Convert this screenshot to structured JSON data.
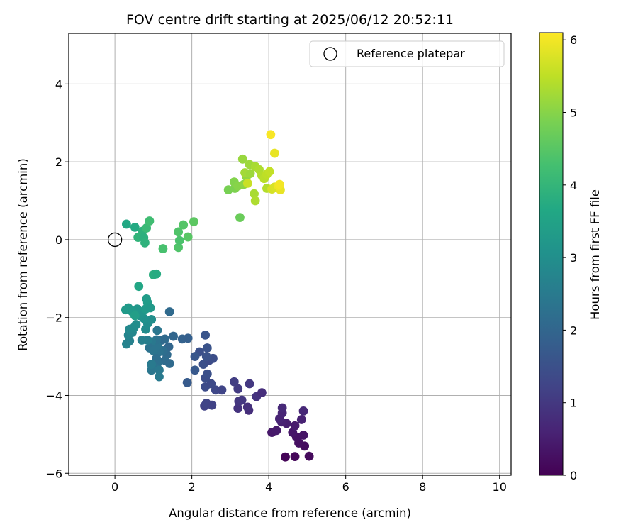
{
  "chart_data": {
    "type": "scatter",
    "title": "FOV centre drift starting at 2025/06/12 20:52:11",
    "xlabel": "Angular distance from reference (arcmin)",
    "ylabel": "Rotation from reference (arcmin)",
    "xlim": [
      -1.2,
      10.3
    ],
    "ylim": [
      -6.05,
      5.3
    ],
    "xticks": [
      0,
      2,
      4,
      6,
      8,
      10
    ],
    "yticks": [
      -6,
      -4,
      -2,
      0,
      2,
      4
    ],
    "grid": true,
    "legend": {
      "position": "top-right",
      "entries": [
        "Reference platepar"
      ]
    },
    "reference_point": {
      "x": 0,
      "y": 0,
      "marker": "open-circle"
    },
    "colorbar": {
      "label": "Hours from first FF file",
      "colormap": "viridis",
      "range": [
        0,
        6.1
      ],
      "ticks": [
        0,
        1,
        2,
        3,
        4,
        5,
        6
      ]
    },
    "points": [
      {
        "x": 4.43,
        "y": -5.58,
        "c": 0.05
      },
      {
        "x": 4.68,
        "y": -5.57,
        "c": 0.1
      },
      {
        "x": 5.05,
        "y": -5.56,
        "c": 0.15
      },
      {
        "x": 4.93,
        "y": -5.3,
        "c": 0.2
      },
      {
        "x": 4.78,
        "y": -5.22,
        "c": 0.25
      },
      {
        "x": 4.72,
        "y": -5.07,
        "c": 0.3
      },
      {
        "x": 4.9,
        "y": -5.02,
        "c": 0.33
      },
      {
        "x": 4.62,
        "y": -4.95,
        "c": 0.37
      },
      {
        "x": 4.08,
        "y": -4.95,
        "c": 0.4
      },
      {
        "x": 4.2,
        "y": -4.9,
        "c": 0.43
      },
      {
        "x": 4.68,
        "y": -4.78,
        "c": 0.46
      },
      {
        "x": 4.46,
        "y": -4.72,
        "c": 0.5
      },
      {
        "x": 4.33,
        "y": -4.68,
        "c": 0.55
      },
      {
        "x": 4.85,
        "y": -4.62,
        "c": 0.58
      },
      {
        "x": 4.28,
        "y": -4.6,
        "c": 0.61
      },
      {
        "x": 4.35,
        "y": -4.45,
        "c": 0.65
      },
      {
        "x": 4.9,
        "y": -4.4,
        "c": 0.68
      },
      {
        "x": 4.35,
        "y": -4.32,
        "c": 0.7
      },
      {
        "x": 3.48,
        "y": -4.38,
        "c": 0.8
      },
      {
        "x": 3.45,
        "y": -4.3,
        "c": 0.85
      },
      {
        "x": 3.2,
        "y": -4.33,
        "c": 0.9
      },
      {
        "x": 3.22,
        "y": -4.15,
        "c": 0.95
      },
      {
        "x": 3.3,
        "y": -4.12,
        "c": 1.0
      },
      {
        "x": 3.68,
        "y": -4.03,
        "c": 0.9
      },
      {
        "x": 3.82,
        "y": -3.93,
        "c": 0.8
      },
      {
        "x": 3.2,
        "y": -3.83,
        "c": 1.05
      },
      {
        "x": 3.5,
        "y": -3.7,
        "c": 1.0
      },
      {
        "x": 3.1,
        "y": -3.65,
        "c": 1.1
      },
      {
        "x": 2.33,
        "y": -4.27,
        "c": 1.2
      },
      {
        "x": 2.38,
        "y": -4.2,
        "c": 1.25
      },
      {
        "x": 2.52,
        "y": -4.25,
        "c": 1.2
      },
      {
        "x": 2.62,
        "y": -3.86,
        "c": 1.3
      },
      {
        "x": 2.78,
        "y": -3.86,
        "c": 1.25
      },
      {
        "x": 2.35,
        "y": -3.78,
        "c": 1.4
      },
      {
        "x": 2.5,
        "y": -3.7,
        "c": 1.35
      },
      {
        "x": 2.35,
        "y": -3.55,
        "c": 1.45
      },
      {
        "x": 2.4,
        "y": -3.45,
        "c": 1.5
      },
      {
        "x": 2.3,
        "y": -3.2,
        "c": 1.5
      },
      {
        "x": 2.45,
        "y": -3.1,
        "c": 1.4
      },
      {
        "x": 2.55,
        "y": -3.05,
        "c": 1.45
      },
      {
        "x": 2.38,
        "y": -3.0,
        "c": 1.55
      },
      {
        "x": 2.2,
        "y": -2.88,
        "c": 1.5
      },
      {
        "x": 2.4,
        "y": -2.78,
        "c": 1.55
      },
      {
        "x": 2.35,
        "y": -2.45,
        "c": 1.6
      },
      {
        "x": 2.08,
        "y": -3.0,
        "c": 1.65
      },
      {
        "x": 2.08,
        "y": -3.35,
        "c": 1.7
      },
      {
        "x": 1.88,
        "y": -3.67,
        "c": 1.75
      },
      {
        "x": 1.75,
        "y": -2.55,
        "c": 1.9
      },
      {
        "x": 1.9,
        "y": -2.53,
        "c": 1.85
      },
      {
        "x": 1.52,
        "y": -2.48,
        "c": 2.0
      },
      {
        "x": 1.42,
        "y": -1.85,
        "c": 2.1
      },
      {
        "x": 1.22,
        "y": -2.58,
        "c": 2.05
      },
      {
        "x": 1.3,
        "y": -2.55,
        "c": 2.1
      },
      {
        "x": 1.4,
        "y": -2.75,
        "c": 2.0
      },
      {
        "x": 1.35,
        "y": -2.95,
        "c": 2.1
      },
      {
        "x": 1.3,
        "y": -3.1,
        "c": 2.15
      },
      {
        "x": 1.42,
        "y": -3.18,
        "c": 2.1
      },
      {
        "x": 1.25,
        "y": -2.85,
        "c": 2.2
      },
      {
        "x": 1.15,
        "y": -2.88,
        "c": 2.3
      },
      {
        "x": 1.1,
        "y": -2.72,
        "c": 2.35
      },
      {
        "x": 1.08,
        "y": -2.57,
        "c": 2.3
      },
      {
        "x": 1.1,
        "y": -2.33,
        "c": 2.4
      },
      {
        "x": 0.95,
        "y": -2.62,
        "c": 2.45
      },
      {
        "x": 0.9,
        "y": -2.78,
        "c": 2.3
      },
      {
        "x": 1.0,
        "y": -2.85,
        "c": 2.35
      },
      {
        "x": 1.08,
        "y": -3.05,
        "c": 2.2
      },
      {
        "x": 1.1,
        "y": -3.18,
        "c": 2.25
      },
      {
        "x": 1.05,
        "y": -3.28,
        "c": 2.3
      },
      {
        "x": 0.95,
        "y": -3.35,
        "c": 2.4
      },
      {
        "x": 0.95,
        "y": -3.2,
        "c": 2.5
      },
      {
        "x": 1.15,
        "y": -3.35,
        "c": 2.45
      },
      {
        "x": 1.15,
        "y": -3.52,
        "c": 2.5
      },
      {
        "x": 0.85,
        "y": -2.58,
        "c": 2.55
      },
      {
        "x": 0.7,
        "y": -2.58,
        "c": 2.6
      },
      {
        "x": 0.3,
        "y": -2.68,
        "c": 2.7
      },
      {
        "x": 0.38,
        "y": -2.6,
        "c": 2.65
      },
      {
        "x": 0.35,
        "y": -2.45,
        "c": 2.75
      },
      {
        "x": 0.45,
        "y": -2.38,
        "c": 2.8
      },
      {
        "x": 0.38,
        "y": -2.3,
        "c": 2.85
      },
      {
        "x": 0.5,
        "y": -2.25,
        "c": 2.9
      },
      {
        "x": 0.55,
        "y": -2.18,
        "c": 2.95
      },
      {
        "x": 0.8,
        "y": -2.3,
        "c": 2.9
      },
      {
        "x": 0.85,
        "y": -2.15,
        "c": 2.95
      },
      {
        "x": 0.95,
        "y": -2.05,
        "c": 3.0
      },
      {
        "x": 0.75,
        "y": -2.02,
        "c": 3.05
      },
      {
        "x": 0.65,
        "y": -1.95,
        "c": 3.1
      },
      {
        "x": 0.7,
        "y": -1.85,
        "c": 3.15
      },
      {
        "x": 0.58,
        "y": -1.78,
        "c": 3.2
      },
      {
        "x": 0.35,
        "y": -1.75,
        "c": 3.25
      },
      {
        "x": 0.28,
        "y": -1.8,
        "c": 3.3
      },
      {
        "x": 0.45,
        "y": -1.85,
        "c": 3.3
      },
      {
        "x": 0.8,
        "y": -1.78,
        "c": 3.3
      },
      {
        "x": 0.85,
        "y": -1.62,
        "c": 3.35
      },
      {
        "x": 0.92,
        "y": -1.75,
        "c": 3.25
      },
      {
        "x": 0.82,
        "y": -1.52,
        "c": 3.35
      },
      {
        "x": 0.52,
        "y": -1.95,
        "c": 3.4
      },
      {
        "x": 0.62,
        "y": -1.2,
        "c": 3.6
      },
      {
        "x": 1.0,
        "y": -0.9,
        "c": 3.8
      },
      {
        "x": 1.08,
        "y": -0.88,
        "c": 3.75
      },
      {
        "x": 0.3,
        "y": 0.4,
        "c": 3.65
      },
      {
        "x": 0.52,
        "y": 0.32,
        "c": 3.7
      },
      {
        "x": 0.72,
        "y": 0.22,
        "c": 3.9
      },
      {
        "x": 0.6,
        "y": 0.06,
        "c": 3.95
      },
      {
        "x": 0.75,
        "y": 0.05,
        "c": 3.85
      },
      {
        "x": 0.78,
        "y": -0.08,
        "c": 3.9
      },
      {
        "x": 0.82,
        "y": 0.3,
        "c": 4.1
      },
      {
        "x": 0.9,
        "y": 0.48,
        "c": 4.2
      },
      {
        "x": 1.25,
        "y": -0.23,
        "c": 4.3
      },
      {
        "x": 1.65,
        "y": -0.2,
        "c": 4.4
      },
      {
        "x": 1.68,
        "y": -0.02,
        "c": 4.35
      },
      {
        "x": 1.65,
        "y": 0.2,
        "c": 4.4
      },
      {
        "x": 1.78,
        "y": 0.38,
        "c": 4.45
      },
      {
        "x": 1.9,
        "y": 0.07,
        "c": 4.5
      },
      {
        "x": 2.05,
        "y": 0.46,
        "c": 4.55
      },
      {
        "x": 3.25,
        "y": 0.57,
        "c": 4.7
      },
      {
        "x": 2.95,
        "y": 1.28,
        "c": 4.85
      },
      {
        "x": 3.12,
        "y": 1.32,
        "c": 4.9
      },
      {
        "x": 3.1,
        "y": 1.48,
        "c": 4.95
      },
      {
        "x": 3.2,
        "y": 1.38,
        "c": 5.0
      },
      {
        "x": 3.35,
        "y": 1.42,
        "c": 5.05
      },
      {
        "x": 3.42,
        "y": 1.62,
        "c": 5.1
      },
      {
        "x": 3.32,
        "y": 2.07,
        "c": 5.15
      },
      {
        "x": 3.5,
        "y": 1.93,
        "c": 5.2
      },
      {
        "x": 3.38,
        "y": 1.72,
        "c": 5.25
      },
      {
        "x": 3.52,
        "y": 1.7,
        "c": 5.2
      },
      {
        "x": 3.65,
        "y": 1.88,
        "c": 5.3
      },
      {
        "x": 3.75,
        "y": 1.8,
        "c": 5.35
      },
      {
        "x": 3.82,
        "y": 1.65,
        "c": 5.4
      },
      {
        "x": 3.88,
        "y": 1.57,
        "c": 5.45
      },
      {
        "x": 3.95,
        "y": 1.68,
        "c": 5.5
      },
      {
        "x": 4.02,
        "y": 1.75,
        "c": 5.55
      },
      {
        "x": 3.62,
        "y": 1.18,
        "c": 5.3
      },
      {
        "x": 3.65,
        "y": 1.0,
        "c": 5.35
      },
      {
        "x": 3.95,
        "y": 1.32,
        "c": 5.4
      },
      {
        "x": 3.45,
        "y": 1.45,
        "c": 5.6
      },
      {
        "x": 4.08,
        "y": 1.3,
        "c": 5.7
      },
      {
        "x": 4.15,
        "y": 1.35,
        "c": 5.75
      },
      {
        "x": 4.3,
        "y": 1.28,
        "c": 5.9
      },
      {
        "x": 4.25,
        "y": 1.38,
        "c": 5.95
      },
      {
        "x": 4.28,
        "y": 1.42,
        "c": 6.0
      },
      {
        "x": 4.15,
        "y": 2.22,
        "c": 5.9
      },
      {
        "x": 4.05,
        "y": 2.7,
        "c": 6.05
      }
    ]
  }
}
